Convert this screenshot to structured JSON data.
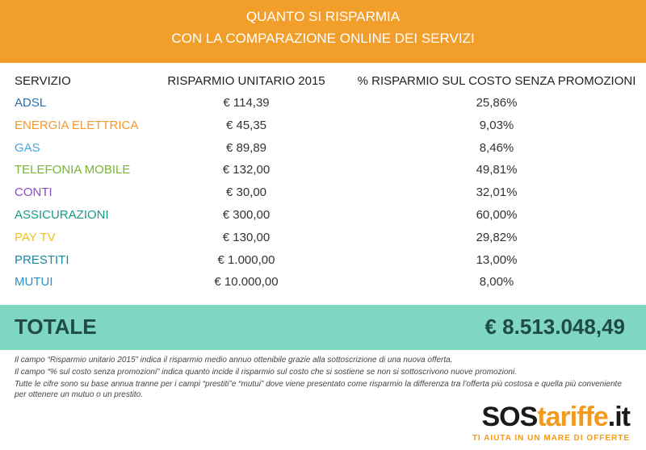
{
  "header": {
    "title_lines": [
      "QUANTO SI RISPARMIA",
      "CON LA COMPARAZIONE ONLINE DEI SERVIZI"
    ]
  },
  "table": {
    "columns": [
      "SERVIZIO",
      "RISPARMIO UNITARIO 2015",
      "% RISPARMIO SUL COSTO SENZA PROMOZIONI"
    ],
    "rows": [
      {
        "service": "ADSL",
        "color": "#2b6ea6",
        "saving": "€ 114,39",
        "percent": "25,86%"
      },
      {
        "service": "ENERGIA ELETTRICA",
        "color": "#f29a2e",
        "saving": "€ 45,35",
        "percent": "9,03%"
      },
      {
        "service": "GAS",
        "color": "#45a7df",
        "saving": "€ 89,89",
        "percent": "8,46%"
      },
      {
        "service": "TELEFONIA MOBILE",
        "color": "#76b536",
        "saving": "€ 132,00",
        "percent": "49,81%"
      },
      {
        "service": "CONTI",
        "color": "#8b4fc2",
        "saving": "€ 30,00",
        "percent": "32,01%"
      },
      {
        "service": "ASSICURAZIONI",
        "color": "#189886",
        "saving": "€ 300,00",
        "percent": "60,00%"
      },
      {
        "service": "PAY TV",
        "color": "#f2c21c",
        "saving": "€ 130,00",
        "percent": "29,82%"
      },
      {
        "service": "PRESTITI",
        "color": "#17889e",
        "saving": "€ 1.000,00",
        "percent": "13,00%"
      },
      {
        "service": "MUTUI",
        "color": "#2a8fc2",
        "saving": "€ 10.000,00",
        "percent": "8,00%"
      }
    ]
  },
  "total": {
    "label": "TOTALE",
    "value": "€ 8.513.048,49"
  },
  "notes": [
    "Il campo “Risparmio unitario 2015” indica il risparmio medio annuo ottenibile grazie alla sottoscrizione di una nuova offerta.",
    "Il campo “% sul costo senza promozioni” indica quanto incide il risparmio sul costo che si sostiene se non si sottoscrivono nuove promozioni.",
    "Tutte le cifre sono su base annua tranne per i campi “prestiti”e “mutui” dove viene presentato come risparmio la differenza tra l’offerta più costosa e quella più conveniente per ottenere un mutuo o un prestito."
  ],
  "logo": {
    "parts": [
      "SOS",
      "tariffe",
      ".it"
    ],
    "tagline": "TI AIUTA IN UN MARE DI OFFERTE"
  }
}
